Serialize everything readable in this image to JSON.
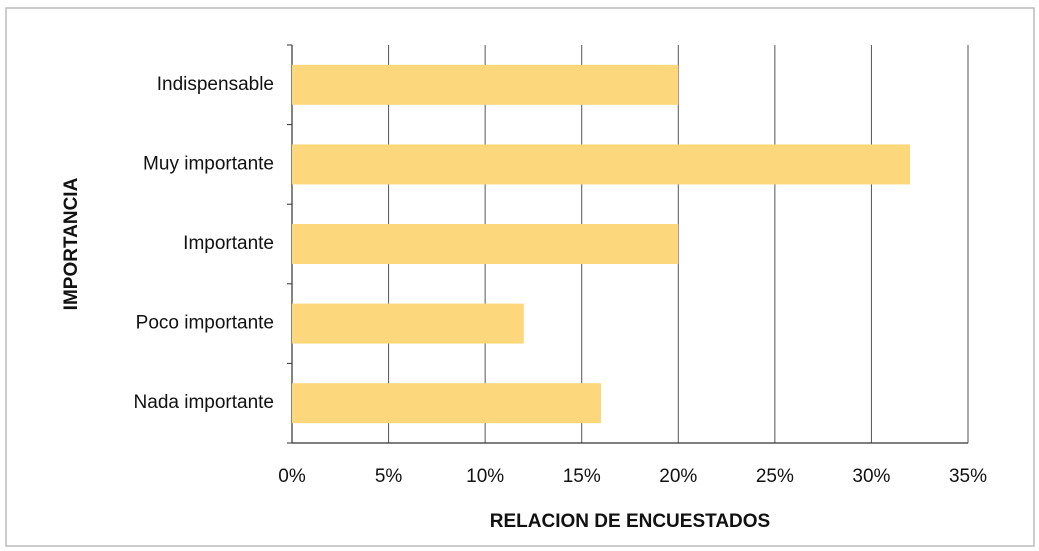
{
  "chart_data": {
    "type": "bar",
    "orientation": "horizontal",
    "xlabel": "RELACION DE ENCUESTADOS",
    "ylabel": "IMPORTANCIA",
    "categories": [
      "Indispensable",
      "Muy importante",
      "Importante",
      "Poco importante",
      "Nada importante"
    ],
    "values": [
      20,
      32,
      20,
      12,
      16
    ],
    "color": "#fcd77c",
    "xlim": [
      0,
      35
    ],
    "xticks": [
      {
        "value": 0,
        "label": "0%"
      },
      {
        "value": 5,
        "label": "5%"
      },
      {
        "value": 10,
        "label": "10%"
      },
      {
        "value": 15,
        "label": "15%"
      },
      {
        "value": 20,
        "label": "20%"
      },
      {
        "value": 25,
        "label": "25%"
      },
      {
        "value": 30,
        "label": "30%"
      },
      {
        "value": 35,
        "label": "35%"
      }
    ],
    "grid": true
  }
}
